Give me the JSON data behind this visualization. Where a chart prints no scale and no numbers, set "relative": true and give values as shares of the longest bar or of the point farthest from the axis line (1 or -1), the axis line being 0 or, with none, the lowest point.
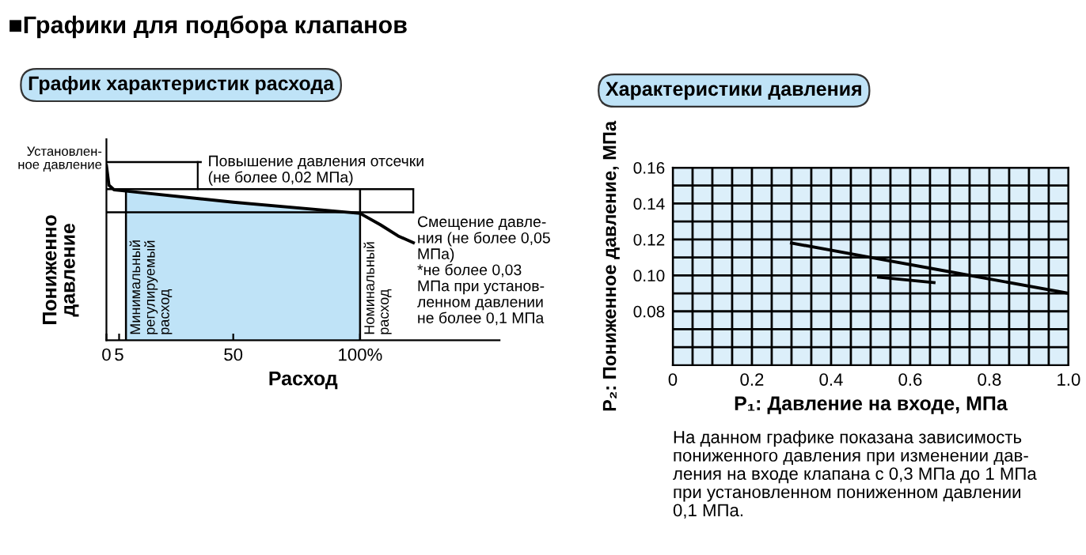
{
  "chart_data": [
    {
      "type": "line",
      "title": "График характеристик расхода",
      "xlabel": "Расход",
      "ylabel": "Пониженно\nдавление",
      "relative": true,
      "x": [
        0,
        1,
        3,
        7,
        50,
        100,
        108,
        115,
        121
      ],
      "series": [
        {
          "color": "#000000",
          "values": [
            1.0,
            0.887,
            0.861,
            0.855,
            0.79,
            0.726,
            0.661,
            0.597,
            0.558
          ]
        }
      ],
      "xlim": [
        0,
        155
      ],
      "xticks": [
        0,
        5,
        50,
        {
          "value": 100,
          "label": "100%"
        }
      ],
      "bands": [
        {
          "axis": "x",
          "from": 7.7,
          "to": 100,
          "color": "#bfe3f7"
        }
      ],
      "ref_lines": [
        {
          "axis": "x",
          "value": 7.7,
          "label": "Минимальный\nрегулируемый\nрасход"
        },
        {
          "axis": "x",
          "value": 100,
          "label": "Номинальный\nрасход"
        },
        {
          "axis": "y",
          "value": 1.02
        },
        {
          "axis": "y",
          "value": 0.865
        },
        {
          "axis": "y",
          "value": 0.732
        }
      ],
      "annotations": [
        "■Графики для подбора клапанов",
        {
          "text": "Установлен-\nное давление",
          "x": 0,
          "y": 1.0
        },
        "Повышение давления отсечки\n(не более 0,02 МПа)",
        "Смещение давле-\nния (не более 0,05\nМПа)\n*не более 0,03\nМПа при установ-\nленном давлении\nне более 0,1 МПа"
      ],
      "grid": false,
      "marker": "none",
      "line_style": "solid"
    },
    {
      "type": "line",
      "title": "Характеристики давления",
      "xlabel": "P₁: Давление на входе, МПа",
      "ylabel": "P₂: Пониженное давление, МПа",
      "series": [
        {
          "color": "#000000",
          "x": [
            0.3,
            0.5,
            0.7,
            1.0
          ],
          "values": [
            0.118,
            0.11,
            0.102,
            0.09
          ]
        },
        {
          "color": "#000000",
          "x": [
            0.52,
            0.66
          ],
          "values": [
            0.099,
            0.096
          ]
        }
      ],
      "xlim": [
        0,
        1.0
      ],
      "ylim": [
        0.05,
        0.16
      ],
      "xticks": [
        0,
        {
          "value": 0.05,
          "label": null
        },
        0.2,
        {
          "value": 0.1,
          "label": null
        },
        {
          "value": 0.15,
          "label": null
        },
        {
          "value": 0.25,
          "label": null
        },
        {
          "value": 0.3,
          "label": null
        },
        {
          "value": 0.35,
          "label": null
        },
        0.4,
        {
          "value": 0.45,
          "label": null
        },
        {
          "value": 0.5,
          "label": null
        },
        {
          "value": 0.55,
          "label": null
        },
        0.6,
        {
          "value": 0.65,
          "label": null
        },
        {
          "value": 0.7,
          "label": null
        },
        {
          "value": 0.75,
          "label": null
        },
        0.8,
        {
          "value": 0.85,
          "label": null
        },
        {
          "value": 0.9,
          "label": null
        },
        {
          "value": 0.95,
          "label": null
        },
        {
          "value": 1.0,
          "label": "1.0"
        }
      ],
      "yticks": [
        {
          "value": 0.06,
          "label": null
        },
        {
          "value": 0.07,
          "label": null
        },
        0.08,
        {
          "value": 0.09,
          "label": null
        },
        {
          "value": 0.1,
          "label": "0.10"
        },
        {
          "value": 0.11,
          "label": null
        },
        0.12,
        {
          "value": 0.13,
          "label": null
        },
        0.14,
        {
          "value": 0.15,
          "label": null
        },
        0.16
      ],
      "annotations": [
        "На данном графике показана зависимость\nпониженного давления при изменении дав-\nления на входе клапана с 0,3 МПа до 1 МПа\nпри установленном пониженном давлении\n0,1 МПа."
      ],
      "grid": true,
      "marker": "none",
      "line_style": "solid"
    }
  ]
}
